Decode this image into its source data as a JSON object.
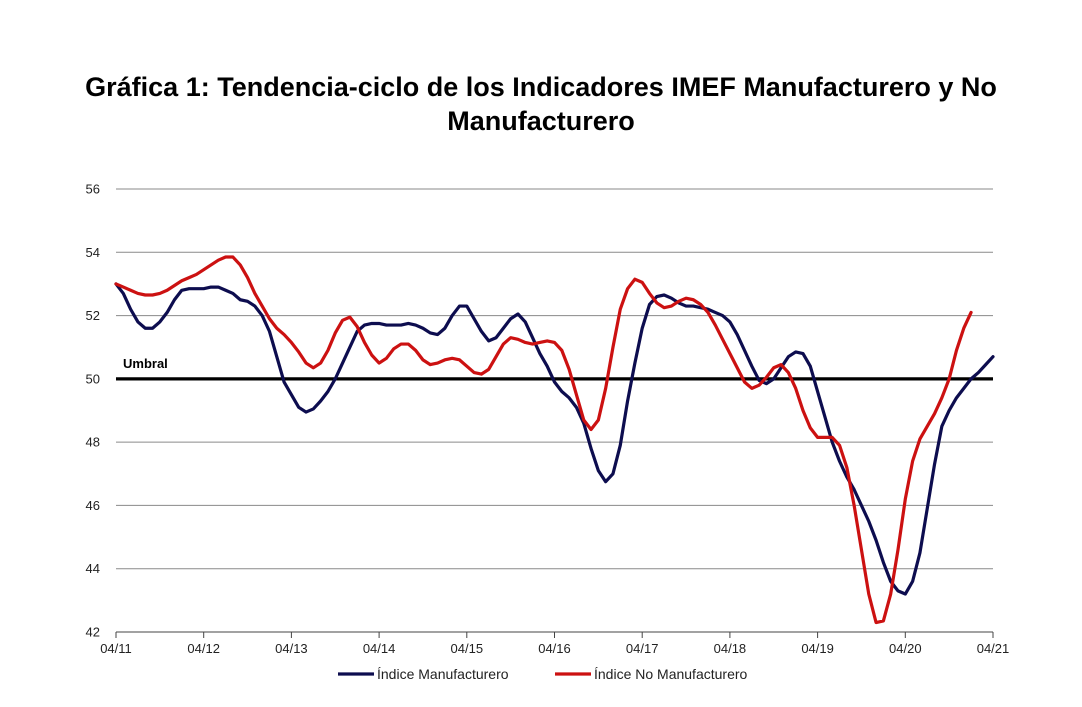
{
  "chart_data": {
    "type": "line",
    "title_line1": "Gráfica 1: Tendencia-ciclo de los Indicadores IMEF Manufacturero y No",
    "title_line2": "Manufacturero",
    "ylim": [
      42,
      56
    ],
    "yticks": [
      "42",
      "44",
      "46",
      "48",
      "50",
      "52",
      "54",
      "56"
    ],
    "xlim": [
      "2011-04",
      "2021-04"
    ],
    "xticks": [
      "04/11",
      "04/12",
      "04/13",
      "04/14",
      "04/15",
      "04/16",
      "04/17",
      "04/18",
      "04/19",
      "04/20",
      "04/21"
    ],
    "grid": true,
    "legend_position": "bottom",
    "threshold": {
      "value": 50,
      "label": "Umbral"
    },
    "series": [
      {
        "name": "Índice Manufacturero",
        "color": "#0d0d4f",
        "points": [
          [
            "2011-04",
            53.0
          ],
          [
            "2011-05",
            52.7
          ],
          [
            "2011-06",
            52.2
          ],
          [
            "2011-07",
            51.8
          ],
          [
            "2011-08",
            51.6
          ],
          [
            "2011-09",
            51.6
          ],
          [
            "2011-10",
            51.8
          ],
          [
            "2011-11",
            52.1
          ],
          [
            "2011-12",
            52.5
          ],
          [
            "2012-01",
            52.8
          ],
          [
            "2012-02",
            52.85
          ],
          [
            "2012-03",
            52.85
          ],
          [
            "2012-04",
            52.85
          ],
          [
            "2012-05",
            52.9
          ],
          [
            "2012-06",
            52.9
          ],
          [
            "2012-07",
            52.8
          ],
          [
            "2012-08",
            52.7
          ],
          [
            "2012-09",
            52.5
          ],
          [
            "2012-10",
            52.45
          ],
          [
            "2012-11",
            52.3
          ],
          [
            "2012-12",
            52.0
          ],
          [
            "2013-01",
            51.5
          ],
          [
            "2013-02",
            50.7
          ],
          [
            "2013-03",
            49.9
          ],
          [
            "2013-04",
            49.5
          ],
          [
            "2013-05",
            49.1
          ],
          [
            "2013-06",
            48.95
          ],
          [
            "2013-07",
            49.05
          ],
          [
            "2013-08",
            49.3
          ],
          [
            "2013-09",
            49.6
          ],
          [
            "2013-10",
            50.0
          ],
          [
            "2013-11",
            50.5
          ],
          [
            "2013-12",
            51.0
          ],
          [
            "2014-01",
            51.5
          ],
          [
            "2014-02",
            51.7
          ],
          [
            "2014-03",
            51.75
          ],
          [
            "2014-04",
            51.75
          ],
          [
            "2014-05",
            51.7
          ],
          [
            "2014-06",
            51.7
          ],
          [
            "2014-07",
            51.7
          ],
          [
            "2014-08",
            51.75
          ],
          [
            "2014-09",
            51.7
          ],
          [
            "2014-10",
            51.6
          ],
          [
            "2014-11",
            51.45
          ],
          [
            "2014-12",
            51.4
          ],
          [
            "2015-01",
            51.6
          ],
          [
            "2015-02",
            52.0
          ],
          [
            "2015-03",
            52.3
          ],
          [
            "2015-04",
            52.3
          ],
          [
            "2015-05",
            51.9
          ],
          [
            "2015-06",
            51.5
          ],
          [
            "2015-07",
            51.2
          ],
          [
            "2015-08",
            51.3
          ],
          [
            "2015-09",
            51.6
          ],
          [
            "2015-10",
            51.9
          ],
          [
            "2015-11",
            52.05
          ],
          [
            "2015-12",
            51.8
          ],
          [
            "2016-01",
            51.3
          ],
          [
            "2016-02",
            50.8
          ],
          [
            "2016-03",
            50.4
          ],
          [
            "2016-04",
            49.9
          ],
          [
            "2016-05",
            49.6
          ],
          [
            "2016-06",
            49.4
          ],
          [
            "2016-07",
            49.1
          ],
          [
            "2016-08",
            48.6
          ],
          [
            "2016-09",
            47.8
          ],
          [
            "2016-10",
            47.1
          ],
          [
            "2016-11",
            46.75
          ],
          [
            "2016-12",
            47.0
          ],
          [
            "2017-01",
            47.9
          ],
          [
            "2017-02",
            49.3
          ],
          [
            "2017-03",
            50.5
          ],
          [
            "2017-04",
            51.6
          ],
          [
            "2017-05",
            52.35
          ],
          [
            "2017-06",
            52.6
          ],
          [
            "2017-07",
            52.65
          ],
          [
            "2017-08",
            52.55
          ],
          [
            "2017-09",
            52.4
          ],
          [
            "2017-10",
            52.3
          ],
          [
            "2017-11",
            52.3
          ],
          [
            "2017-12",
            52.25
          ],
          [
            "2018-01",
            52.2
          ],
          [
            "2018-02",
            52.1
          ],
          [
            "2018-03",
            52.0
          ],
          [
            "2018-04",
            51.8
          ],
          [
            "2018-05",
            51.4
          ],
          [
            "2018-06",
            50.9
          ],
          [
            "2018-07",
            50.4
          ],
          [
            "2018-08",
            49.95
          ],
          [
            "2018-09",
            49.85
          ],
          [
            "2018-10",
            50.0
          ],
          [
            "2018-11",
            50.35
          ],
          [
            "2018-12",
            50.7
          ],
          [
            "2019-01",
            50.85
          ],
          [
            "2019-02",
            50.8
          ],
          [
            "2019-03",
            50.4
          ],
          [
            "2019-04",
            49.6
          ],
          [
            "2019-05",
            48.8
          ],
          [
            "2019-06",
            48.0
          ],
          [
            "2019-07",
            47.4
          ],
          [
            "2019-08",
            46.9
          ],
          [
            "2019-09",
            46.5
          ],
          [
            "2019-10",
            46.0
          ],
          [
            "2019-11",
            45.5
          ],
          [
            "2019-12",
            44.9
          ],
          [
            "2020-01",
            44.2
          ],
          [
            "2020-02",
            43.6
          ],
          [
            "2020-03",
            43.3
          ],
          [
            "2020-04",
            43.2
          ],
          [
            "2020-05",
            43.6
          ],
          [
            "2020-06",
            44.5
          ],
          [
            "2020-07",
            45.9
          ],
          [
            "2020-08",
            47.3
          ],
          [
            "2020-09",
            48.5
          ],
          [
            "2020-10",
            49.0
          ],
          [
            "2020-11",
            49.4
          ],
          [
            "2020-12",
            49.7
          ],
          [
            "2021-01",
            50.0
          ],
          [
            "2021-02",
            50.2
          ],
          [
            "2021-03",
            50.45
          ],
          [
            "2021-04",
            50.7
          ]
        ]
      },
      {
        "name": "Índice No Manufacturero",
        "color": "#cc1111",
        "points": [
          [
            "2011-04",
            53.0
          ],
          [
            "2011-05",
            52.9
          ],
          [
            "2011-06",
            52.8
          ],
          [
            "2011-07",
            52.7
          ],
          [
            "2011-08",
            52.65
          ],
          [
            "2011-09",
            52.65
          ],
          [
            "2011-10",
            52.7
          ],
          [
            "2011-11",
            52.8
          ],
          [
            "2011-12",
            52.95
          ],
          [
            "2012-01",
            53.1
          ],
          [
            "2012-02",
            53.2
          ],
          [
            "2012-03",
            53.3
          ],
          [
            "2012-04",
            53.45
          ],
          [
            "2012-05",
            53.6
          ],
          [
            "2012-06",
            53.75
          ],
          [
            "2012-07",
            53.85
          ],
          [
            "2012-08",
            53.85
          ],
          [
            "2012-09",
            53.6
          ],
          [
            "2012-10",
            53.2
          ],
          [
            "2012-11",
            52.7
          ],
          [
            "2012-12",
            52.3
          ],
          [
            "2013-01",
            51.9
          ],
          [
            "2013-02",
            51.6
          ],
          [
            "2013-03",
            51.4
          ],
          [
            "2013-04",
            51.15
          ],
          [
            "2013-05",
            50.85
          ],
          [
            "2013-06",
            50.5
          ],
          [
            "2013-07",
            50.35
          ],
          [
            "2013-08",
            50.5
          ],
          [
            "2013-09",
            50.9
          ],
          [
            "2013-10",
            51.45
          ],
          [
            "2013-11",
            51.85
          ],
          [
            "2013-12",
            51.95
          ],
          [
            "2014-01",
            51.65
          ],
          [
            "2014-02",
            51.15
          ],
          [
            "2014-03",
            50.75
          ],
          [
            "2014-04",
            50.5
          ],
          [
            "2014-05",
            50.65
          ],
          [
            "2014-06",
            50.95
          ],
          [
            "2014-07",
            51.1
          ],
          [
            "2014-08",
            51.1
          ],
          [
            "2014-09",
            50.9
          ],
          [
            "2014-10",
            50.6
          ],
          [
            "2014-11",
            50.45
          ],
          [
            "2014-12",
            50.5
          ],
          [
            "2015-01",
            50.6
          ],
          [
            "2015-02",
            50.65
          ],
          [
            "2015-03",
            50.6
          ],
          [
            "2015-04",
            50.4
          ],
          [
            "2015-05",
            50.2
          ],
          [
            "2015-06",
            50.15
          ],
          [
            "2015-07",
            50.3
          ],
          [
            "2015-08",
            50.7
          ],
          [
            "2015-09",
            51.1
          ],
          [
            "2015-10",
            51.3
          ],
          [
            "2015-11",
            51.25
          ],
          [
            "2015-12",
            51.15
          ],
          [
            "2016-01",
            51.1
          ],
          [
            "2016-02",
            51.15
          ],
          [
            "2016-03",
            51.2
          ],
          [
            "2016-04",
            51.15
          ],
          [
            "2016-05",
            50.9
          ],
          [
            "2016-06",
            50.3
          ],
          [
            "2016-07",
            49.5
          ],
          [
            "2016-08",
            48.7
          ],
          [
            "2016-09",
            48.4
          ],
          [
            "2016-10",
            48.7
          ],
          [
            "2016-11",
            49.7
          ],
          [
            "2016-12",
            51.0
          ],
          [
            "2017-01",
            52.2
          ],
          [
            "2017-02",
            52.85
          ],
          [
            "2017-03",
            53.15
          ],
          [
            "2017-04",
            53.05
          ],
          [
            "2017-05",
            52.7
          ],
          [
            "2017-06",
            52.4
          ],
          [
            "2017-07",
            52.25
          ],
          [
            "2017-08",
            52.3
          ],
          [
            "2017-09",
            52.45
          ],
          [
            "2017-10",
            52.55
          ],
          [
            "2017-11",
            52.5
          ],
          [
            "2017-12",
            52.35
          ],
          [
            "2018-01",
            52.1
          ],
          [
            "2018-02",
            51.7
          ],
          [
            "2018-03",
            51.25
          ],
          [
            "2018-04",
            50.8
          ],
          [
            "2018-05",
            50.35
          ],
          [
            "2018-06",
            49.9
          ],
          [
            "2018-07",
            49.7
          ],
          [
            "2018-08",
            49.8
          ],
          [
            "2018-09",
            50.05
          ],
          [
            "2018-10",
            50.35
          ],
          [
            "2018-11",
            50.45
          ],
          [
            "2018-12",
            50.2
          ],
          [
            "2019-01",
            49.7
          ],
          [
            "2019-02",
            49.0
          ],
          [
            "2019-03",
            48.45
          ],
          [
            "2019-04",
            48.15
          ],
          [
            "2019-05",
            48.15
          ],
          [
            "2019-06",
            48.15
          ],
          [
            "2019-07",
            47.9
          ],
          [
            "2019-08",
            47.2
          ],
          [
            "2019-09",
            46.0
          ],
          [
            "2019-10",
            44.6
          ],
          [
            "2019-11",
            43.2
          ],
          [
            "2019-12",
            42.3
          ],
          [
            "2020-01",
            42.35
          ],
          [
            "2020-02",
            43.2
          ],
          [
            "2020-03",
            44.6
          ],
          [
            "2020-04",
            46.2
          ],
          [
            "2020-05",
            47.4
          ],
          [
            "2020-06",
            48.1
          ],
          [
            "2020-07",
            48.5
          ],
          [
            "2020-08",
            48.9
          ],
          [
            "2020-09",
            49.4
          ],
          [
            "2020-10",
            50.0
          ],
          [
            "2020-11",
            50.9
          ],
          [
            "2020-12",
            51.6
          ],
          [
            "2021-01",
            52.1
          ]
        ]
      }
    ]
  }
}
